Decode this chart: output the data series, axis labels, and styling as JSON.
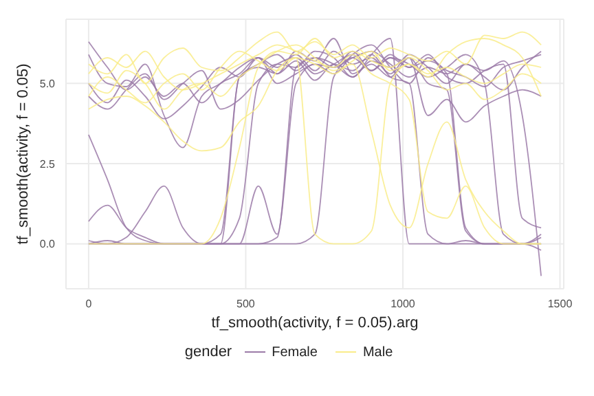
{
  "chart_data": {
    "type": "line",
    "xlabel": "tf_smooth(activity, f = 0.05).arg",
    "ylabel": "tf_smooth(activity, f = 0.05)",
    "legend_title": "gender",
    "legend": "bottom",
    "grid": true,
    "line_style": "solid",
    "marker": "none",
    "x": [
      0,
      60,
      120,
      180,
      240,
      300,
      360,
      420,
      480,
      540,
      600,
      660,
      720,
      780,
      840,
      900,
      960,
      1020,
      1080,
      1140,
      1200,
      1260,
      1320,
      1380,
      1440
    ],
    "xlim": [
      -72,
      1512
    ],
    "xticks": [
      0,
      500,
      1000,
      1500
    ],
    "ylim": [
      -1.4,
      7.0
    ],
    "yticks": [
      {
        "value": 0,
        "label": "0.0"
      },
      {
        "value": 2.5,
        "label": "2.5"
      },
      {
        "value": 5,
        "label": "5.0"
      }
    ],
    "series": [
      {
        "name": "Female",
        "color": "#9b7aa8",
        "values": [
          6.3,
          5.5,
          4.8,
          5.2,
          4.6,
          5.0,
          4.4,
          5.0,
          5.3,
          5.8,
          5.5,
          5.9,
          5.4,
          6.0,
          5.6,
          5.8,
          5.3,
          5.9,
          5.5,
          5.0,
          5.6,
          5.2,
          4.8,
          5.5,
          6.0
        ]
      },
      {
        "color": "#9b7aa8",
        "values": [
          3.4,
          2.0,
          0.5,
          0.1,
          0,
          0,
          0,
          0,
          0,
          0,
          0.2,
          5.5,
          5.8,
          5.5,
          6.0,
          5.4,
          5.8,
          5.6,
          5.2,
          5.5,
          5.9,
          5.0,
          0.3,
          0,
          0.2
        ]
      },
      {
        "color": "#9b7aa8",
        "values": [
          0,
          0,
          0,
          0,
          0,
          0,
          0,
          0.3,
          5.2,
          5.6,
          5.9,
          5.4,
          5.8,
          5.6,
          5.2,
          5.7,
          5.5,
          5.8,
          5.0,
          4.8,
          0.4,
          0,
          0,
          0,
          -0.2
        ]
      },
      {
        "color": "#9b7aa8",
        "values": [
          0.7,
          1.2,
          0.5,
          0.2,
          0,
          0,
          0,
          0,
          0,
          1.8,
          0.3,
          5.0,
          5.6,
          5.3,
          5.9,
          6.2,
          5.5,
          5.0,
          5.8,
          5.4,
          5.2,
          4.9,
          5.5,
          5.7,
          5.9
        ]
      },
      {
        "color": "#9b7aa8",
        "values": [
          5.9,
          5.0,
          4.9,
          5.6,
          4.0,
          3.0,
          4.6,
          5.0,
          5.5,
          5.8,
          5.3,
          6.0,
          5.7,
          6.4,
          5.3,
          5.6,
          5.2,
          5.8,
          4.0,
          4.5,
          3.8,
          4.3,
          4.6,
          4.8,
          4.6
        ]
      },
      {
        "color": "#9b7aa8",
        "values": [
          0,
          0.1,
          0,
          0,
          0,
          0,
          0,
          0,
          0,
          0,
          0,
          0,
          0.3,
          5.2,
          5.8,
          5.4,
          5.9,
          5.5,
          5.7,
          5.3,
          0.5,
          0,
          0,
          0,
          0.3
        ]
      },
      {
        "color": "#9b7aa8",
        "values": [
          0.1,
          0,
          0,
          0,
          0,
          0,
          0,
          0,
          0.8,
          5.0,
          5.6,
          5.5,
          6.0,
          5.8,
          5.2,
          5.9,
          6.4,
          0,
          0,
          0,
          0,
          0,
          0,
          0,
          0
        ]
      },
      {
        "color": "#9b7aa8",
        "values": [
          4.6,
          4.2,
          4.8,
          5.3,
          4.5,
          5.0,
          5.4,
          4.2,
          4.5,
          5.1,
          5.6,
          5.8,
          5.3,
          5.6,
          5.9,
          5.4,
          5.8,
          5.5,
          5.9,
          5.2,
          5.0,
          5.4,
          5.6,
          0.8,
          0.5
        ]
      },
      {
        "color": "#9b7aa8",
        "values": [
          0,
          0,
          0.2,
          1.0,
          1.8,
          0.5,
          0,
          0,
          5.2,
          5.5,
          5.3,
          5.7,
          5.1,
          5.6,
          5.4,
          5.9,
          5.2,
          5.0,
          0.3,
          0,
          0.1,
          0,
          0,
          0,
          0
        ]
      },
      {
        "color": "#9b7aa8",
        "values": [
          5.0,
          4.4,
          5.1,
          4.6,
          3.9,
          4.3,
          4.9,
          5.5,
          5.2,
          5.8,
          5.0,
          5.3,
          5.6,
          5.5,
          5.8,
          6.0,
          5.6,
          5.2,
          5.5,
          5.3,
          5.6,
          5.4,
          5.7,
          4.0,
          -1.0
        ]
      },
      {
        "name": "Male",
        "color": "#f9ec8a",
        "values": [
          5.6,
          5.3,
          5.9,
          5.0,
          5.8,
          6.1,
          5.5,
          5.4,
          5.8,
          6.3,
          6.6,
          6.0,
          6.3,
          5.9,
          6.2,
          5.8,
          6.1,
          5.9,
          5.7,
          6.0,
          5.6,
          6.5,
          6.4,
          6.6,
          6.2
        ]
      },
      {
        "color": "#f9ec8a",
        "values": [
          5.0,
          4.7,
          5.4,
          5.0,
          4.2,
          4.8,
          5.0,
          4.6,
          5.2,
          5.6,
          6.0,
          6.2,
          5.8,
          5.4,
          5.6,
          3.5,
          1.2,
          0.5,
          2.5,
          3.8,
          2.0,
          1.0,
          0.4,
          0,
          0
        ]
      },
      {
        "color": "#f9ec8a",
        "values": [
          0,
          0,
          0,
          0,
          0,
          0,
          0,
          0.8,
          3.0,
          5.5,
          6.0,
          5.9,
          6.4,
          5.8,
          6.0,
          5.7,
          5.5,
          5.8,
          5.4,
          4.8,
          5.0,
          4.5,
          4.8,
          5.3,
          5.0
        ]
      },
      {
        "color": "#f9ec8a",
        "values": [
          4.2,
          4.5,
          4.6,
          4.3,
          3.8,
          3.2,
          2.9,
          3.0,
          3.8,
          4.3,
          5.4,
          5.8,
          0.3,
          0,
          0,
          0.4,
          5.0,
          5.6,
          5.3,
          5.5,
          5.2,
          5.0,
          5.3,
          5.6,
          5.5
        ]
      },
      {
        "color": "#f9ec8a",
        "values": [
          5.3,
          5.8,
          5.5,
          6.0,
          5.2,
          4.8,
          5.0,
          5.3,
          5.6,
          5.9,
          6.2,
          6.0,
          5.7,
          5.5,
          5.9,
          5.3,
          5.0,
          4.5,
          1.0,
          0.8,
          1.8,
          0.5,
          0,
          0,
          0
        ]
      },
      {
        "color": "#f9ec8a",
        "values": [
          4.6,
          5.2,
          4.8,
          4.4,
          5.0,
          5.3,
          4.8,
          5.5,
          6.0,
          5.7,
          5.4,
          5.8,
          5.6,
          5.3,
          5.7,
          6.0,
          5.4,
          5.6,
          5.2,
          5.9,
          6.3,
          6.4,
          6.2,
          5.8,
          4.6
        ]
      }
    ]
  }
}
